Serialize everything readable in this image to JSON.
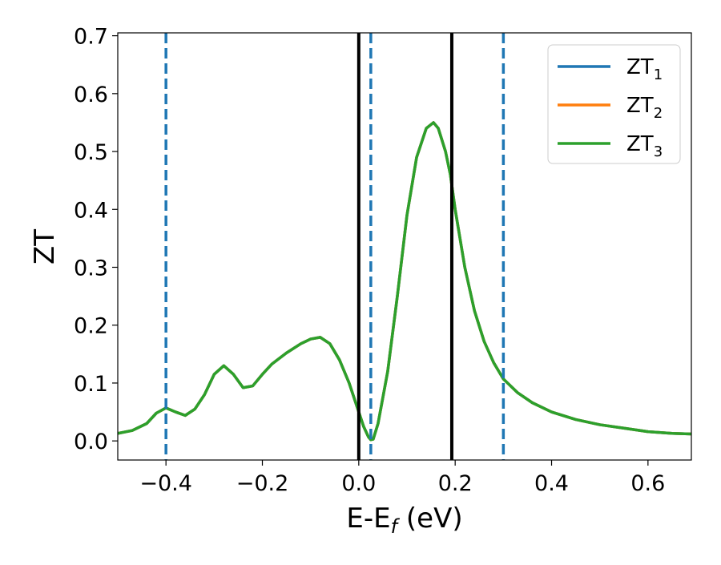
{
  "chart_data": {
    "type": "line",
    "title": "",
    "xlabel": "E-E",
    "xlabel_sub": "f",
    "xlabel_unit": " (eV)",
    "ylabel": "ZT",
    "xlim": [
      -0.5,
      0.69
    ],
    "ylim": [
      -0.033,
      0.705
    ],
    "grid": false,
    "legend_position": "top-right",
    "x_ticks": [
      {
        "value": -0.4,
        "label": "−0.4"
      },
      {
        "value": -0.2,
        "label": "−0.2"
      },
      {
        "value": 0.0,
        "label": "0.0"
      },
      {
        "value": 0.2,
        "label": "0.2"
      },
      {
        "value": 0.4,
        "label": "0.4"
      },
      {
        "value": 0.6,
        "label": "0.6"
      }
    ],
    "y_ticks": [
      {
        "value": 0.0,
        "label": "0.0"
      },
      {
        "value": 0.1,
        "label": "0.1"
      },
      {
        "value": 0.2,
        "label": "0.2"
      },
      {
        "value": 0.3,
        "label": "0.3"
      },
      {
        "value": 0.4,
        "label": "0.4"
      },
      {
        "value": 0.5,
        "label": "0.5"
      },
      {
        "value": 0.6,
        "label": "0.6"
      },
      {
        "value": 0.7,
        "label": "0.7"
      }
    ],
    "x": [
      -0.5,
      -0.47,
      -0.44,
      -0.42,
      -0.4,
      -0.38,
      -0.36,
      -0.34,
      -0.32,
      -0.3,
      -0.28,
      -0.26,
      -0.24,
      -0.22,
      -0.2,
      -0.18,
      -0.15,
      -0.12,
      -0.1,
      -0.08,
      -0.06,
      -0.04,
      -0.02,
      0.0,
      0.01,
      0.02,
      0.025,
      0.03,
      0.04,
      0.06,
      0.08,
      0.1,
      0.12,
      0.14,
      0.155,
      0.165,
      0.18,
      0.19,
      0.2,
      0.22,
      0.24,
      0.26,
      0.28,
      0.3,
      0.33,
      0.36,
      0.4,
      0.45,
      0.5,
      0.55,
      0.6,
      0.65,
      0.69
    ],
    "series": [
      {
        "name": "ZT",
        "name_sub": "1",
        "color": "#1f77b4",
        "values": [
          0.013,
          0.018,
          0.03,
          0.048,
          0.057,
          0.05,
          0.044,
          0.055,
          0.08,
          0.115,
          0.13,
          0.115,
          0.092,
          0.095,
          0.115,
          0.133,
          0.152,
          0.168,
          0.176,
          0.179,
          0.168,
          0.14,
          0.1,
          0.05,
          0.025,
          0.007,
          0.002,
          0.003,
          0.03,
          0.12,
          0.25,
          0.39,
          0.49,
          0.54,
          0.55,
          0.54,
          0.5,
          0.46,
          0.4,
          0.3,
          0.225,
          0.172,
          0.135,
          0.107,
          0.083,
          0.066,
          0.05,
          0.037,
          0.028,
          0.022,
          0.016,
          0.013,
          0.012
        ]
      },
      {
        "name": "ZT",
        "name_sub": "2",
        "color": "#ff7f0e",
        "values": [
          0.013,
          0.018,
          0.03,
          0.048,
          0.057,
          0.05,
          0.044,
          0.055,
          0.08,
          0.115,
          0.13,
          0.115,
          0.092,
          0.095,
          0.115,
          0.133,
          0.152,
          0.168,
          0.176,
          0.179,
          0.168,
          0.14,
          0.1,
          0.05,
          0.025,
          0.007,
          0.002,
          0.003,
          0.03,
          0.12,
          0.25,
          0.39,
          0.49,
          0.54,
          0.55,
          0.54,
          0.5,
          0.46,
          0.4,
          0.3,
          0.225,
          0.172,
          0.135,
          0.107,
          0.083,
          0.066,
          0.05,
          0.037,
          0.028,
          0.022,
          0.016,
          0.013,
          0.012
        ]
      },
      {
        "name": "ZT",
        "name_sub": "3",
        "color": "#2ca02c",
        "values": [
          0.013,
          0.018,
          0.03,
          0.048,
          0.057,
          0.05,
          0.044,
          0.055,
          0.08,
          0.115,
          0.13,
          0.115,
          0.092,
          0.095,
          0.115,
          0.133,
          0.152,
          0.168,
          0.176,
          0.179,
          0.168,
          0.14,
          0.1,
          0.05,
          0.025,
          0.007,
          0.002,
          0.003,
          0.03,
          0.12,
          0.25,
          0.39,
          0.49,
          0.54,
          0.55,
          0.54,
          0.5,
          0.46,
          0.4,
          0.3,
          0.225,
          0.172,
          0.135,
          0.107,
          0.083,
          0.066,
          0.05,
          0.037,
          0.028,
          0.022,
          0.016,
          0.013,
          0.012
        ]
      }
    ],
    "vertical_lines": [
      {
        "x": -0.4,
        "style": "dashed",
        "color": "#1f77b4"
      },
      {
        "x": 0.025,
        "style": "dashed",
        "color": "#1f77b4"
      },
      {
        "x": 0.3,
        "style": "dashed",
        "color": "#1f77b4"
      },
      {
        "x": 0.0,
        "style": "solid",
        "color": "#000000"
      },
      {
        "x": 0.193,
        "style": "solid",
        "color": "#000000"
      }
    ]
  }
}
